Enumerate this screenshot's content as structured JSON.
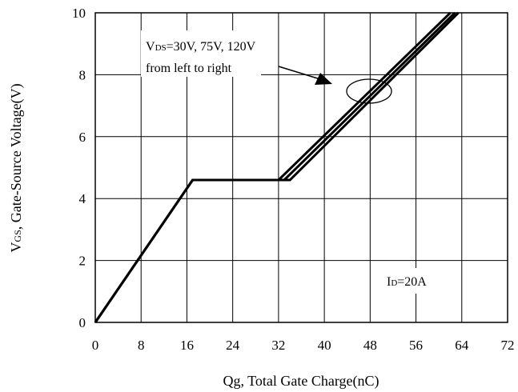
{
  "chart_data": {
    "type": "line",
    "xlabel": "Qg, Total Gate Charge(nC)",
    "ylabel": {
      "prefix": "V",
      "sub": "GS",
      "rest": ", Gate-Source Voltage(V)"
    },
    "xlim": [
      0,
      72
    ],
    "ylim": [
      0,
      10
    ],
    "xticks": [
      0,
      8,
      16,
      24,
      32,
      40,
      48,
      56,
      64,
      72
    ],
    "yticks": [
      0,
      2,
      4,
      6,
      8,
      10
    ],
    "grid": true,
    "series": [
      {
        "x": [
          0,
          17,
          32,
          62
        ],
        "y": [
          0,
          4.6,
          4.6,
          10
        ]
      },
      {
        "x": [
          0,
          17,
          33,
          62.8
        ],
        "y": [
          0,
          4.6,
          4.6,
          10
        ]
      },
      {
        "x": [
          0,
          17,
          34,
          63.4
        ],
        "y": [
          0,
          4.6,
          4.6,
          10
        ]
      }
    ],
    "annotations": {
      "vds": {
        "prefix": "V",
        "sub": "DS",
        "rest": "=30V, 75V, 120V"
      },
      "vds_line2": "from left to right",
      "id": {
        "prefix": "I",
        "sub": "D",
        "rest": "=20A"
      }
    }
  }
}
